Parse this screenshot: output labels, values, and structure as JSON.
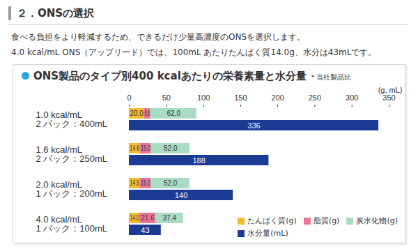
{
  "page": {
    "heading": "２．ONSの選択",
    "text": [
      "食べる負担をより軽減するため、できるだけ少量高濃度のONSを選択します。",
      "4.0 kcal/mL ONS（アップリード）では、100mL あたりたんぱく質14.0g、水分は43mLです。"
    ]
  },
  "chart_data": {
    "type": "bar",
    "title": "ONS製品のタイプ別400 kcalあたりの栄養素量と水分量",
    "note": "＊当社製品比",
    "xlabel": "(g, mL)",
    "orientation": "horizontal",
    "stacked": true,
    "data_labels": true,
    "grid": false,
    "legend": "bottom-right",
    "categories": [
      "1.0 kcal/mL\n2 パック：400mL",
      "1.6 kcal/mL\n2 パック：250mL",
      "2.0 kcal/mL\n1 パック：200mL",
      "4.0 kcal/mL\n1 パック：100mL"
    ],
    "xlim": [
      0,
      350
    ],
    "xticks": [
      0,
      50,
      100,
      150,
      200,
      250,
      300,
      350
    ],
    "series": [
      {
        "name": "たんぱく質(g)",
        "type": "stacked_bar",
        "color": "#f3bd2f",
        "values": [
          20.0,
          14.6,
          14.5,
          14.0
        ],
        "value_labels": [
          "20.0",
          "14.6",
          "14.5",
          "14.0"
        ]
      },
      {
        "name": "脂質(g)",
        "type": "stacked_bar",
        "color": "#ec7497",
        "values": [
          8.8,
          15.0,
          15.0,
          21.6
        ],
        "value_labels": [
          "8.8",
          "15.0",
          "15.0",
          "21.6"
        ]
      },
      {
        "name": "炭水化物(g)",
        "type": "stacked_bar",
        "color": "#a9dcc3",
        "values": [
          62.0,
          52.0,
          52.0,
          37.4
        ],
        "value_labels": [
          "62.0",
          "52.0",
          "52.0",
          "37.4"
        ]
      },
      {
        "name": "水分量(mL)",
        "type": "bar",
        "color": "#1b3a93",
        "values": [
          336,
          188,
          140,
          43
        ]
      }
    ]
  }
}
